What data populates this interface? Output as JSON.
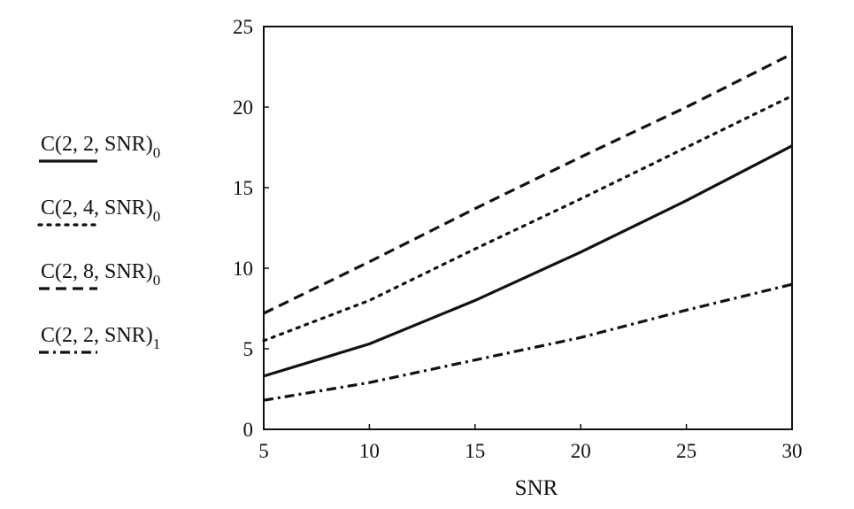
{
  "chart_data": {
    "type": "line",
    "title": "",
    "xlabel": "SNR",
    "ylabel": "",
    "xlim": [
      5,
      30
    ],
    "ylim": [
      0,
      25
    ],
    "xticks": [
      "5",
      "10",
      "15",
      "20",
      "25",
      "30"
    ],
    "yticks": [
      "0",
      "5",
      "10",
      "15",
      "20",
      "25"
    ],
    "grid": false,
    "legend_position": "left",
    "series": [
      {
        "name": "C(2, 2, SNR)",
        "name_subscript": "0",
        "line_style": "solid",
        "x": [
          5,
          10,
          15,
          20,
          25,
          30
        ],
        "y": [
          3.3,
          5.3,
          8.0,
          11.0,
          14.2,
          17.6
        ]
      },
      {
        "name": "C(2, 4, SNR)",
        "name_subscript": "0",
        "line_style": "dotted",
        "x": [
          5,
          10,
          15,
          20,
          25,
          30
        ],
        "y": [
          5.5,
          8.0,
          11.2,
          14.3,
          17.5,
          20.7
        ]
      },
      {
        "name": "C(2, 8, SNR)",
        "name_subscript": "0",
        "line_style": "dashed",
        "x": [
          5,
          10,
          15,
          20,
          25,
          30
        ],
        "y": [
          7.2,
          10.4,
          13.7,
          16.9,
          20.0,
          23.3
        ]
      },
      {
        "name": "C(2, 2, SNR)",
        "name_subscript": "1",
        "line_style": "dash-dot",
        "x": [
          5,
          10,
          15,
          20,
          25,
          30
        ],
        "y": [
          1.8,
          2.9,
          4.3,
          5.7,
          7.4,
          9.0
        ]
      }
    ]
  }
}
